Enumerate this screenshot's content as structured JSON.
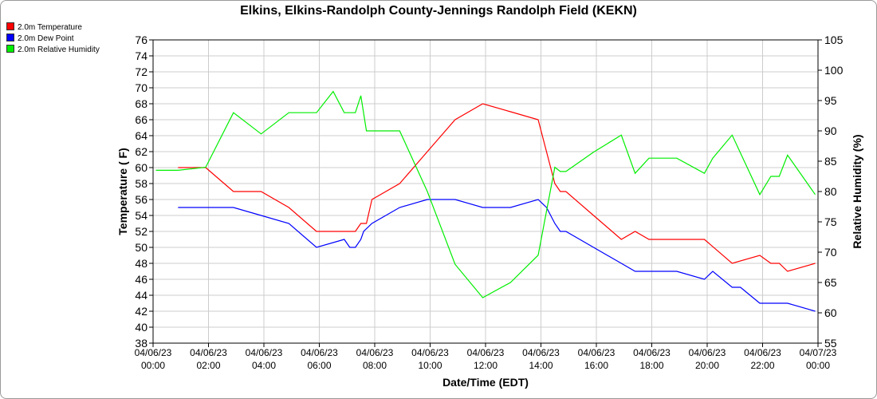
{
  "chart_data": {
    "type": "line",
    "title": "Elkins, Elkins-Randolph County-Jennings Randolph Field (KEKN)",
    "xlabel": "Date/Time (EDT)",
    "ylabel": "Temperature ( F)",
    "y2label": "Relative Humidity (%)",
    "ylim": [
      38,
      76
    ],
    "y2lim": [
      55,
      105
    ],
    "xlim_hours": [
      0,
      24
    ],
    "y_ticks": [
      38,
      40,
      42,
      44,
      46,
      48,
      50,
      52,
      54,
      56,
      58,
      60,
      62,
      64,
      66,
      68,
      70,
      72,
      74,
      76
    ],
    "y2_ticks": [
      55,
      60,
      65,
      70,
      75,
      80,
      85,
      90,
      95,
      100,
      105
    ],
    "x_tick_labels": [
      {
        "date": "04/06/23",
        "time": "00:00"
      },
      {
        "date": "04/06/23",
        "time": "02:00"
      },
      {
        "date": "04/06/23",
        "time": "04:00"
      },
      {
        "date": "04/06/23",
        "time": "06:00"
      },
      {
        "date": "04/06/23",
        "time": "08:00"
      },
      {
        "date": "04/06/23",
        "time": "10:00"
      },
      {
        "date": "04/06/23",
        "time": "12:00"
      },
      {
        "date": "04/06/23",
        "time": "14:00"
      },
      {
        "date": "04/06/23",
        "time": "16:00"
      },
      {
        "date": "04/06/23",
        "time": "18:00"
      },
      {
        "date": "04/06/23",
        "time": "20:00"
      },
      {
        "date": "04/06/23",
        "time": "22:00"
      },
      {
        "date": "04/07/23",
        "time": "00:00"
      }
    ],
    "legend_position": "top-left",
    "grid": true,
    "series": [
      {
        "name": "2.0m Temperature",
        "color": "#ff0000",
        "axis": "left",
        "x": [
          0.9,
          1.9,
          2.9,
          3.9,
          4.9,
          5.9,
          6.9,
          7.3,
          7.5,
          7.7,
          7.9,
          8.9,
          9.9,
          10.9,
          11.9,
          12.9,
          13.9,
          14.5,
          14.7,
          14.9,
          15.9,
          16.9,
          17.4,
          17.9,
          18.9,
          19.9,
          20.9,
          21.9,
          22.3,
          22.6,
          22.9,
          23.9
        ],
        "y": [
          60,
          60,
          57,
          57,
          55,
          52,
          52,
          52,
          53,
          53,
          56,
          58,
          62,
          66,
          68,
          67,
          66,
          58,
          57,
          57,
          54,
          51,
          52,
          51,
          51,
          51,
          48,
          49,
          48,
          48,
          47,
          48
        ]
      },
      {
        "name": "2.0m Dew Point",
        "color": "#0000ff",
        "axis": "left",
        "x": [
          0.9,
          1.9,
          2.9,
          3.9,
          4.9,
          5.9,
          6.9,
          7.1,
          7.3,
          7.5,
          7.6,
          7.9,
          8.9,
          9.9,
          10.9,
          11.9,
          12.9,
          13.9,
          14.2,
          14.5,
          14.7,
          14.9,
          15.9,
          16.9,
          17.4,
          17.9,
          18.9,
          19.9,
          20.2,
          20.9,
          21.2,
          21.9,
          22.9,
          23.9
        ],
        "y": [
          55,
          55,
          55,
          54,
          53,
          50,
          51,
          50,
          50,
          51,
          52,
          53,
          55,
          56,
          56,
          55,
          55,
          56,
          55,
          53,
          52,
          52,
          50,
          48,
          47,
          47,
          47,
          46,
          47,
          45,
          45,
          43,
          43,
          42
        ]
      },
      {
        "name": "2.0m Relative Humidity",
        "color": "#00ee00",
        "axis": "right",
        "x": [
          0.1,
          0.9,
          1.9,
          2.9,
          3.9,
          4.9,
          5.9,
          6.5,
          6.9,
          7.3,
          7.5,
          7.7,
          7.9,
          8.9,
          9.9,
          10.9,
          11.9,
          12.9,
          13.9,
          14.5,
          14.7,
          14.9,
          15.9,
          16.9,
          17.4,
          17.9,
          18.9,
          19.9,
          20.2,
          20.9,
          21.9,
          22.3,
          22.6,
          22.9,
          23.9
        ],
        "y": [
          83.5,
          83.5,
          84,
          93,
          89.5,
          93,
          93,
          96.5,
          93,
          93,
          95.8,
          90,
          90,
          90,
          80,
          68,
          62.5,
          65,
          69.5,
          84,
          83.3,
          83.3,
          86.5,
          89.3,
          83,
          85.5,
          85.5,
          83,
          85.5,
          89.3,
          79.5,
          82.5,
          82.5,
          86,
          79.5
        ]
      }
    ]
  }
}
